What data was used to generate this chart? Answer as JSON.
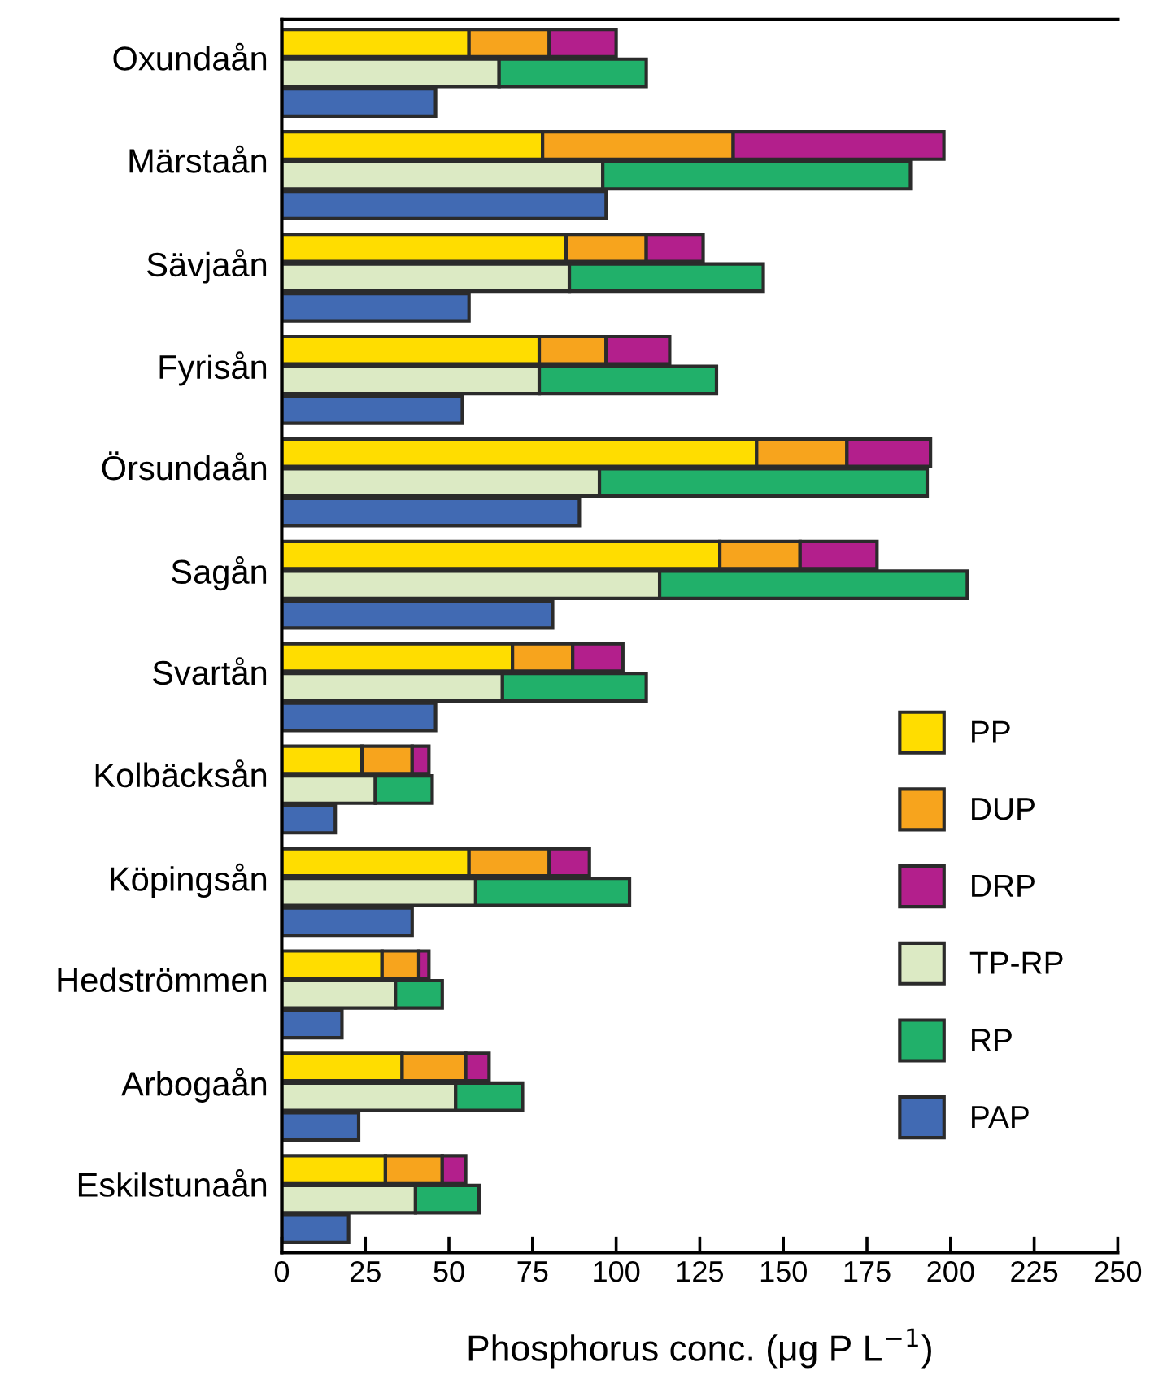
{
  "chart_data": {
    "type": "bar",
    "orientation": "horizontal",
    "stacked": true,
    "xlabel": "Phosphorus conc. (μg P L$^{−1}$)",
    "categories": [
      null,
      "Oxundaån",
      null,
      null,
      "Märstaån",
      null,
      null,
      "Sävjaån",
      null,
      null,
      "Fyrisån",
      null,
      null,
      "Örsundaån",
      null,
      null,
      "Sagån",
      null,
      null,
      "Svartån",
      null,
      null,
      "Kolbäcksån",
      null,
      null,
      "Köpingsån",
      null,
      null,
      "Hedströmmen",
      null,
      null,
      "Arbogaån",
      null,
      null,
      "Eskilstunaån",
      null
    ],
    "series": [
      {
        "name": "PP",
        "color": "#ffdd00",
        "values": [
          56,
          null,
          null,
          78,
          null,
          null,
          85,
          null,
          null,
          77,
          null,
          null,
          142,
          null,
          null,
          131,
          null,
          null,
          69,
          null,
          null,
          24,
          null,
          null,
          56,
          null,
          null,
          30,
          null,
          null,
          36,
          null,
          null,
          31,
          null,
          null
        ]
      },
      {
        "name": "DUP",
        "color": "#f7a41d",
        "values": [
          24,
          null,
          null,
          57,
          null,
          null,
          24,
          null,
          null,
          20,
          null,
          null,
          27,
          null,
          null,
          24,
          null,
          null,
          18,
          null,
          null,
          15,
          null,
          null,
          24,
          null,
          null,
          11,
          null,
          null,
          19,
          null,
          null,
          17,
          null,
          null
        ]
      },
      {
        "name": "DRP",
        "color": "#b31f8c",
        "values": [
          20,
          null,
          null,
          63,
          null,
          null,
          17,
          null,
          null,
          19,
          null,
          null,
          25,
          null,
          null,
          23,
          null,
          null,
          15,
          null,
          null,
          5,
          null,
          null,
          12,
          null,
          null,
          3,
          null,
          null,
          7,
          null,
          null,
          7,
          null,
          null
        ]
      },
      {
        "name": "TP-RP",
        "color": "#dceac4",
        "values": [
          null,
          65,
          null,
          null,
          96,
          null,
          null,
          86,
          null,
          null,
          77,
          null,
          null,
          95,
          null,
          null,
          113,
          null,
          null,
          66,
          null,
          null,
          28,
          null,
          null,
          58,
          null,
          null,
          34,
          null,
          null,
          52,
          null,
          null,
          40,
          null
        ]
      },
      {
        "name": "RP",
        "color": "#21b06a",
        "values": [
          null,
          44,
          null,
          null,
          92,
          null,
          null,
          58,
          null,
          null,
          53,
          null,
          null,
          98,
          null,
          null,
          92,
          null,
          null,
          43,
          null,
          null,
          17,
          null,
          null,
          46,
          null,
          null,
          14,
          null,
          null,
          20,
          null,
          null,
          19,
          null
        ]
      },
      {
        "name": "PAP",
        "color": "#416ab3",
        "values": [
          null,
          null,
          46,
          null,
          null,
          97,
          null,
          null,
          56,
          null,
          null,
          54,
          null,
          null,
          89,
          null,
          null,
          81,
          null,
          null,
          46,
          null,
          null,
          16,
          null,
          null,
          39,
          null,
          null,
          18,
          null,
          null,
          23,
          null,
          null,
          20
        ]
      }
    ],
    "xlim": [
      0,
      250
    ],
    "xticks": [
      0,
      25,
      50,
      75,
      100,
      125,
      150,
      175,
      200,
      225,
      250
    ],
    "legend": "bottom right"
  }
}
